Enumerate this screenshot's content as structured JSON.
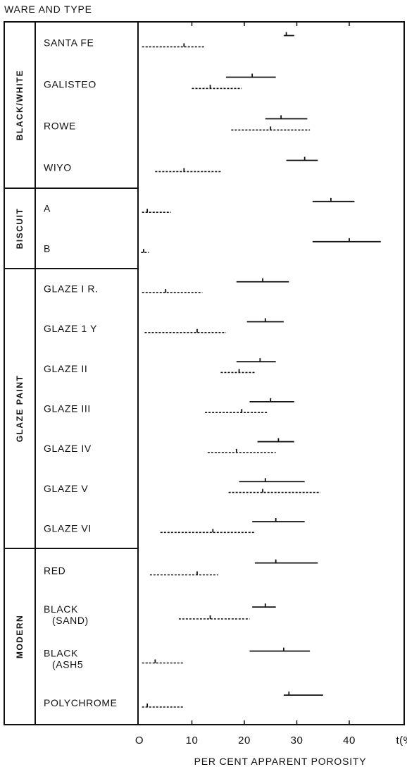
{
  "figure": {
    "column_header": "WARE AND TYPE"
  },
  "chart_data": {
    "type": "range",
    "xlabel": "PER CENT APPARENT POROSITY",
    "xlim": [
      0,
      50
    ],
    "xticks": [
      "O",
      "10",
      "20",
      "30",
      "40",
      "t(%)"
    ],
    "series": [
      {
        "style": "solid"
      },
      {
        "style": "dashed"
      }
    ],
    "groups": [
      {
        "name": "BLACK/WHITE",
        "items": [
          {
            "label": "SANTA FE",
            "solid": [
              27.5,
              29.5,
              28.0
            ],
            "dashed": [
              0.5,
              12.5,
              8.5
            ]
          },
          {
            "label": "GALISTEO",
            "solid": [
              16.5,
              26.0,
              21.5
            ],
            "dashed": [
              10.0,
              19.5,
              13.5
            ]
          },
          {
            "label": "ROWE",
            "solid": [
              24.0,
              32.0,
              27.0
            ],
            "dashed": [
              17.5,
              32.5,
              25.0
            ]
          },
          {
            "label": "WIYO",
            "solid": [
              28.0,
              34.0,
              31.5
            ],
            "dashed": [
              3.0,
              15.5,
              8.5
            ]
          }
        ]
      },
      {
        "name": "BISCUIT",
        "items": [
          {
            "label": "A",
            "solid": [
              33.0,
              41.0,
              36.5
            ],
            "dashed": [
              0.5,
              6.0,
              1.5
            ]
          },
          {
            "label": "B",
            "solid": [
              33.0,
              46.0,
              40.0
            ],
            "dashed": [
              0.3,
              1.8,
              0.8
            ]
          }
        ]
      },
      {
        "name": "GLAZE PAINT",
        "items": [
          {
            "label": "GLAZE I R.",
            "solid": [
              18.5,
              28.5,
              23.5
            ],
            "dashed": [
              0.5,
              12.0,
              5.0
            ]
          },
          {
            "label": "GLAZE 1 Y",
            "solid": [
              20.5,
              27.5,
              24.0
            ],
            "dashed": [
              1.0,
              16.5,
              11.0
            ]
          },
          {
            "label": "GLAZE II",
            "solid": [
              18.5,
              26.0,
              23.0
            ],
            "dashed": [
              15.5,
              22.0,
              19.0
            ]
          },
          {
            "label": "GLAZE III",
            "solid": [
              21.0,
              29.5,
              25.0
            ],
            "dashed": [
              12.5,
              24.5,
              19.5
            ]
          },
          {
            "label": "GLAZE IV",
            "solid": [
              22.5,
              29.5,
              26.5
            ],
            "dashed": [
              13.0,
              26.0,
              18.5
            ]
          },
          {
            "label": "GLAZE V",
            "solid": [
              19.0,
              31.5,
              24.0
            ],
            "dashed": [
              17.0,
              34.5,
              23.5
            ]
          },
          {
            "label": "GLAZE VI",
            "solid": [
              21.5,
              31.5,
              26.0
            ],
            "dashed": [
              4.0,
              22.0,
              14.0
            ]
          }
        ]
      },
      {
        "name": "MODERN",
        "items": [
          {
            "label": "RED",
            "solid": [
              22.0,
              34.0,
              26.0
            ],
            "dashed": [
              2.0,
              15.0,
              11.0
            ]
          },
          {
            "label": "BLACK (SAND)",
            "solid": [
              21.5,
              26.0,
              24.0
            ],
            "dashed": [
              7.5,
              21.0,
              13.5
            ]
          },
          {
            "label": "BLACK (ASH5",
            "solid": [
              21.0,
              32.5,
              27.5
            ],
            "dashed": [
              0.5,
              8.5,
              3.0
            ]
          },
          {
            "label": "POLYCHROME",
            "solid": [
              27.5,
              35.0,
              28.5
            ],
            "dashed": [
              0.5,
              8.5,
              1.5
            ]
          }
        ]
      }
    ]
  }
}
